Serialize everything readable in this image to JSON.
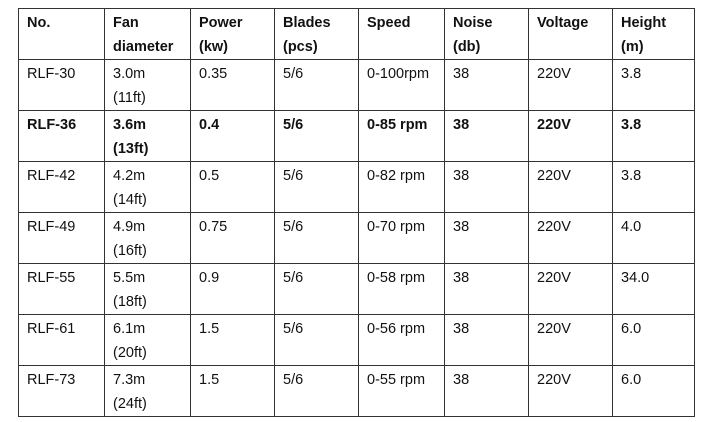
{
  "table": {
    "header": [
      "No.",
      "Fan diameter",
      "Power (kw)",
      "Blades (pcs)",
      "Speed",
      "Noise (db)",
      "Voltage",
      "Height (m)"
    ],
    "rows": [
      [
        "RLF-30",
        "3.0m (11ft)",
        "0.35",
        "5/6",
        "0-100rpm",
        "38",
        "220V",
        "3.8"
      ],
      [
        "RLF-36",
        "3.6m (13ft)",
        "0.4",
        "5/6",
        "0-85 rpm",
        "38",
        "220V",
        "3.8"
      ],
      [
        "RLF-42",
        "4.2m (14ft)",
        "0.5",
        "5/6",
        "0-82 rpm",
        "38",
        "220V",
        "3.8"
      ],
      [
        "RLF-49",
        "4.9m (16ft)",
        "0.75",
        "5/6",
        "0-70 rpm",
        "38",
        "220V",
        "4.0"
      ],
      [
        "RLF-55",
        "5.5m (18ft)",
        "0.9",
        "5/6",
        "0-58 rpm",
        "38",
        "220V",
        "34.0"
      ],
      [
        "RLF-61",
        "6.1m (20ft)",
        "1.5",
        "5/6",
        "0-56 rpm",
        "38",
        "220V",
        "6.0"
      ],
      [
        "RLF-73",
        "7.3m (24ft)",
        "1.5",
        "5/6",
        "0-55 rpm",
        "38",
        "220V",
        "6.0"
      ]
    ]
  }
}
